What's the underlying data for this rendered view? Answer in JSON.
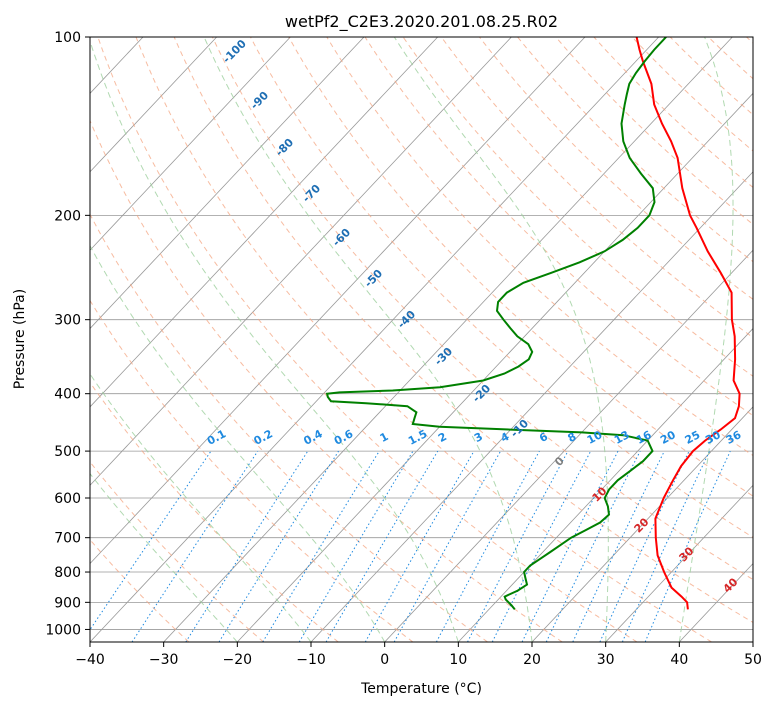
{
  "chart_data": {
    "type": "line",
    "subtype": "skew-t log-p diagram",
    "title": "wetPf2_C2E3.2020.201.08.25.R02",
    "xlabel": "Temperature (°C)",
    "ylabel": "Pressure (hPa)",
    "xlim": [
      -40,
      50
    ],
    "ylim": [
      1050,
      100
    ],
    "y_scale": "log",
    "x_ticks": [
      -40,
      -30,
      -20,
      -10,
      0,
      10,
      20,
      30,
      40,
      50
    ],
    "y_ticks": [
      100,
      200,
      300,
      400,
      500,
      600,
      700,
      800,
      900,
      1000
    ],
    "grid": true,
    "series": [
      {
        "color": "#ff0000",
        "points": [
          [
            925,
            37
          ],
          [
            900,
            36
          ],
          [
            880,
            34.5
          ],
          [
            850,
            32
          ],
          [
            800,
            29
          ],
          [
            750,
            26
          ],
          [
            700,
            23.5
          ],
          [
            650,
            21
          ],
          [
            600,
            19.5
          ],
          [
            560,
            18.5
          ],
          [
            530,
            17.8
          ],
          [
            500,
            17.5
          ],
          [
            480,
            17.8
          ],
          [
            460,
            18.5
          ],
          [
            440,
            19
          ],
          [
            420,
            18
          ],
          [
            400,
            16.5
          ],
          [
            380,
            14
          ],
          [
            350,
            11.5
          ],
          [
            320,
            8.5
          ],
          [
            300,
            6
          ],
          [
            270,
            2.5
          ],
          [
            250,
            -1.5
          ],
          [
            230,
            -6
          ],
          [
            210,
            -10.5
          ],
          [
            200,
            -13
          ],
          [
            180,
            -17.5
          ],
          [
            160,
            -22
          ],
          [
            150,
            -25
          ],
          [
            140,
            -28.5
          ],
          [
            130,
            -32
          ],
          [
            120,
            -35
          ],
          [
            110,
            -39
          ],
          [
            105,
            -41
          ],
          [
            100,
            -43
          ]
        ]
      },
      {
        "color": "#008000",
        "points": [
          [
            925,
            13.5
          ],
          [
            910,
            12.5
          ],
          [
            890,
            11
          ],
          [
            880,
            10.5
          ],
          [
            860,
            11.5
          ],
          [
            840,
            12
          ],
          [
            820,
            11
          ],
          [
            800,
            10
          ],
          [
            780,
            10
          ],
          [
            760,
            10.5
          ],
          [
            740,
            11
          ],
          [
            720,
            11.5
          ],
          [
            700,
            12
          ],
          [
            680,
            13
          ],
          [
            660,
            14
          ],
          [
            640,
            14.2
          ],
          [
            620,
            13
          ],
          [
            600,
            11.5
          ],
          [
            580,
            11
          ],
          [
            560,
            11
          ],
          [
            540,
            11.5
          ],
          [
            520,
            12
          ],
          [
            500,
            12
          ],
          [
            480,
            10
          ],
          [
            470,
            6
          ],
          [
            465,
            0
          ],
          [
            460,
            -10
          ],
          [
            455,
            -20
          ],
          [
            450,
            -24
          ],
          [
            440,
            -24.5
          ],
          [
            430,
            -25
          ],
          [
            420,
            -27
          ],
          [
            415,
            -33
          ],
          [
            412,
            -38
          ],
          [
            405,
            -39
          ],
          [
            400,
            -39.5
          ],
          [
            398,
            -38
          ],
          [
            395,
            -31
          ],
          [
            390,
            -25
          ],
          [
            380,
            -20
          ],
          [
            370,
            -18
          ],
          [
            360,
            -17
          ],
          [
            350,
            -16.5
          ],
          [
            340,
            -17
          ],
          [
            330,
            -18.5
          ],
          [
            320,
            -21
          ],
          [
            310,
            -23
          ],
          [
            300,
            -25
          ],
          [
            290,
            -27
          ],
          [
            280,
            -28
          ],
          [
            270,
            -28
          ],
          [
            260,
            -27
          ],
          [
            250,
            -24.5
          ],
          [
            240,
            -22
          ],
          [
            230,
            -20
          ],
          [
            220,
            -19
          ],
          [
            210,
            -18.5
          ],
          [
            200,
            -18.5
          ],
          [
            190,
            -19.5
          ],
          [
            180,
            -21.5
          ],
          [
            170,
            -25
          ],
          [
            160,
            -28.5
          ],
          [
            150,
            -31.5
          ],
          [
            140,
            -34
          ],
          [
            130,
            -36
          ],
          [
            125,
            -37
          ],
          [
            120,
            -38
          ],
          [
            115,
            -38.5
          ],
          [
            110,
            -38.8
          ],
          [
            105,
            -39
          ],
          [
            100,
            -39
          ]
        ]
      }
    ],
    "dry_adiabat_labels": [
      "-100",
      "-90",
      "-80",
      "-70",
      "-60",
      "-50",
      "-40",
      "-30",
      "-20",
      "-10",
      "0",
      "10",
      "20",
      "30",
      "40"
    ],
    "mixing_ratio_labels": [
      "0.1",
      "0.2",
      "0.4",
      "0.6",
      "1",
      "1.5",
      "2",
      "3",
      "4",
      "6",
      "8",
      "10",
      "13",
      "16",
      "20",
      "25",
      "30",
      "36"
    ],
    "mixing_ratio_values": [
      0.1,
      0.2,
      0.4,
      0.6,
      1,
      1.5,
      2,
      3,
      4,
      6,
      8,
      10,
      13,
      16,
      20,
      25,
      30,
      36
    ],
    "colors": {
      "isotherm": "#999999",
      "isobar": "#999999",
      "dry_adiabat": "#f4a582",
      "moist_adiabat": "#9ecf9e",
      "mixing_ratio": "#1f8ae0",
      "dry_adiabat_label_cold": "#1f6fb4",
      "dry_adiabat_label_warm": "#d62728",
      "zero_label": "#808080",
      "saturated_adiabat": "#d2b48c"
    }
  }
}
